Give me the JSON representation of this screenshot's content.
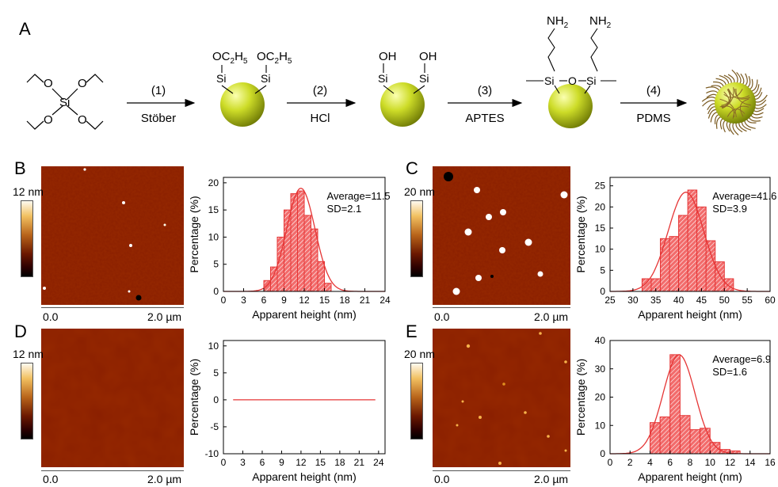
{
  "panel_labels": {
    "A": "A",
    "B": "B",
    "C": "C",
    "D": "D",
    "E": "E"
  },
  "scheme": {
    "steps": [
      {
        "num": "(1)",
        "reagent": "Stöber"
      },
      {
        "num": "(2)",
        "reagent": "HCl"
      },
      {
        "num": "(3)",
        "reagent": "APTES"
      },
      {
        "num": "(4)",
        "reagent": "PDMS"
      }
    ],
    "atoms": {
      "si": "Si",
      "o": "O",
      "oh": "OH",
      "oet": "OC",
      "c2": "2",
      "h5": "H",
      "h5sub": "5",
      "nh": "NH",
      "nh2": "2"
    }
  },
  "afm": {
    "B": {
      "colorbar": "12 nm",
      "scale_start": "0.0",
      "scale_end": "2.0 µm"
    },
    "C": {
      "colorbar": "20 nm",
      "scale_start": "0.0",
      "scale_end": "2.0 µm"
    },
    "D": {
      "colorbar": "12 nm",
      "scale_start": "0.0",
      "scale_end": "2.0 µm"
    },
    "E": {
      "colorbar": "20 nm",
      "scale_start": "0.0",
      "scale_end": "2.0 µm"
    }
  },
  "chart_data": [
    {
      "panel": "B",
      "type": "bar",
      "xlabel": "Apparent height (nm)",
      "ylabel": "Percentage (%)",
      "xlim": [
        0,
        24
      ],
      "ylim": [
        0,
        21
      ],
      "xticks": [
        0,
        3,
        6,
        9,
        12,
        15,
        18,
        21,
        24
      ],
      "yticks": [
        0,
        5,
        10,
        15,
        20
      ],
      "bin_width": 1,
      "x": [
        6.5,
        7.5,
        8.5,
        9.5,
        10.5,
        11.5,
        12.5,
        13.5,
        14.5,
        15.5
      ],
      "values": [
        2,
        4.5,
        10,
        15,
        18,
        18.5,
        14,
        11.5,
        5.5,
        1.5
      ],
      "fit": {
        "type": "gaussian",
        "mean": 11.5,
        "sd": 2.1,
        "peak": 19
      },
      "annotations": [
        "Average=11.5",
        "SD=2.1"
      ]
    },
    {
      "panel": "C",
      "type": "bar",
      "xlabel": "Apparent height (nm)",
      "ylabel": "Percentage (%)",
      "xlim": [
        25,
        60
      ],
      "ylim": [
        0,
        27
      ],
      "xticks": [
        25,
        30,
        35,
        40,
        45,
        50,
        55,
        60
      ],
      "yticks": [
        0,
        5,
        10,
        15,
        20,
        25
      ],
      "bin_width": 2,
      "x": [
        33,
        35,
        37,
        39,
        41,
        43,
        45,
        47,
        49,
        51
      ],
      "values": [
        3,
        3,
        12.5,
        13,
        18,
        24,
        20,
        12,
        7,
        3
      ],
      "fit": {
        "type": "gaussian",
        "mean": 41.6,
        "sd": 3.9,
        "peak": 23.5
      },
      "annotations": [
        "Average=41.6",
        "SD=3.9"
      ]
    },
    {
      "panel": "D",
      "type": "line",
      "xlabel": "Apparent height (nm)",
      "ylabel": "Percentage (%)",
      "xlim": [
        0,
        25
      ],
      "ylim": [
        -10,
        11
      ],
      "xticks": [
        0,
        3,
        6,
        9,
        12,
        15,
        18,
        21,
        24
      ],
      "yticks": [
        -10,
        -5,
        0,
        5,
        10
      ],
      "series": [
        {
          "x": [
            1.5,
            23.5
          ],
          "values": [
            0,
            0
          ]
        }
      ]
    },
    {
      "panel": "E",
      "type": "bar",
      "xlabel": "Apparent height (nm)",
      "ylabel": "Percentage (%)",
      "xlim": [
        0,
        16
      ],
      "ylim": [
        0,
        40
      ],
      "xticks": [
        0,
        2,
        4,
        6,
        8,
        10,
        12,
        14,
        16
      ],
      "yticks": [
        0,
        10,
        20,
        30,
        40
      ],
      "bin_width": 1,
      "x": [
        4.5,
        5.5,
        6.5,
        7.5,
        8.5,
        9.5,
        10.5,
        11.5,
        12.5
      ],
      "values": [
        11,
        13,
        35,
        13.5,
        8.5,
        9,
        4,
        1.5,
        1
      ],
      "fit": {
        "type": "gaussian",
        "mean": 6.9,
        "sd": 1.6,
        "peak": 35
      },
      "annotations": [
        "Average=6.9",
        "SD=1.6"
      ]
    }
  ]
}
